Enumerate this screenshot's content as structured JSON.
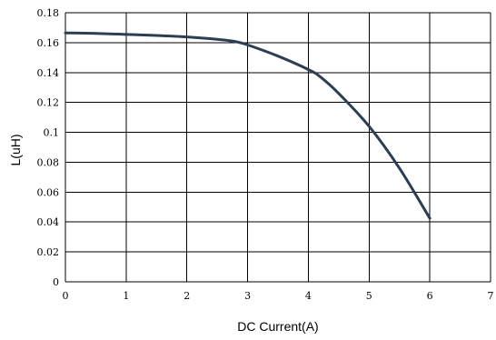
{
  "chart_data": {
    "type": "line",
    "title": "",
    "xlabel": "DC Current(A)",
    "ylabel": "L(uH)",
    "xlim": [
      0,
      7
    ],
    "ylim": [
      0,
      0.18
    ],
    "xticks": [
      "0",
      "1",
      "2",
      "3",
      "4",
      "5",
      "6",
      "7"
    ],
    "yticks": [
      "0",
      "0.02",
      "0.04",
      "0.06",
      "0.08",
      "0.1",
      "0.12",
      "0.14",
      "0.16",
      "0.18"
    ],
    "grid": true,
    "series": [
      {
        "x": [
          0,
          0.5,
          1,
          1.5,
          2,
          2.5,
          2.8,
          3,
          3.5,
          4,
          4.2,
          4.5,
          5,
          5.5,
          6
        ],
        "y": [
          0.1665,
          0.1662,
          0.1655,
          0.1648,
          0.1638,
          0.1622,
          0.1607,
          0.1585,
          0.151,
          0.142,
          0.137,
          0.126,
          0.104,
          0.076,
          0.0425
        ],
        "color": "#2a3f56"
      }
    ]
  }
}
